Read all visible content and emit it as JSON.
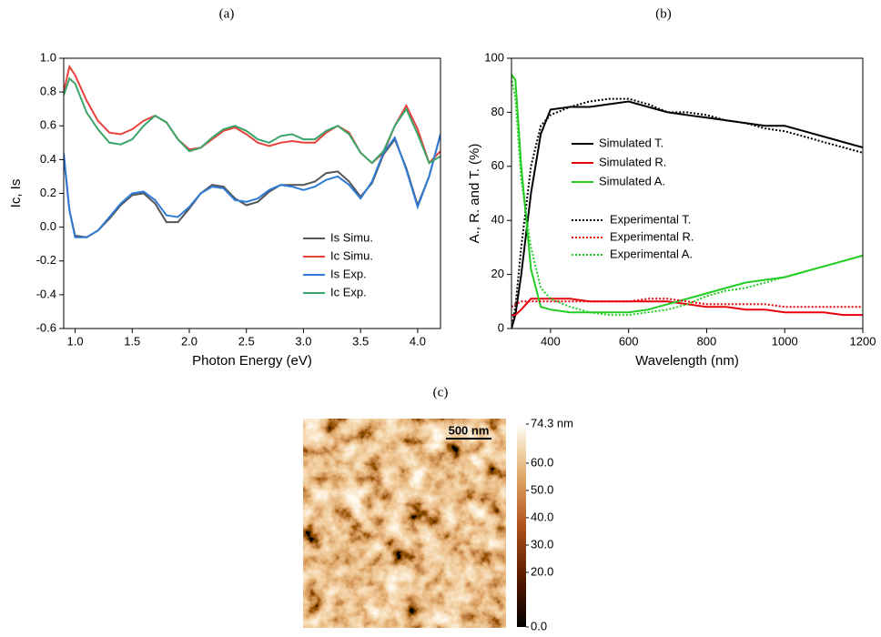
{
  "chart_data": [
    {
      "type": "line",
      "panel_label": "(a)",
      "x_label": "Photon Energy (eV)",
      "y_label": "Ic, Is",
      "xlim": [
        0.9,
        4.2
      ],
      "ylim": [
        -0.6,
        1.0
      ],
      "xticks": [
        {
          "value": 1,
          "label": "1.0"
        },
        1.5,
        {
          "value": 2,
          "label": "2.0"
        },
        2.5,
        {
          "value": 3,
          "label": "3.0"
        },
        3.5,
        {
          "value": 4,
          "label": "4.0"
        }
      ],
      "yticks": [
        -0.6,
        -0.4,
        -0.2,
        {
          "value": 0,
          "label": "0.0"
        },
        0.2,
        0.4,
        0.6,
        0.8,
        {
          "value": 1,
          "label": "1.0"
        }
      ],
      "legend": "lower right",
      "x": [
        0.9,
        0.95,
        1.0,
        1.1,
        1.2,
        1.3,
        1.4,
        1.5,
        1.6,
        1.7,
        1.8,
        1.9,
        2.0,
        2.1,
        2.2,
        2.3,
        2.4,
        2.5,
        2.6,
        2.7,
        2.8,
        2.9,
        3.0,
        3.1,
        3.2,
        3.3,
        3.4,
        3.5,
        3.6,
        3.7,
        3.8,
        3.9,
        4.0,
        4.1,
        4.2
      ],
      "series": [
        {
          "name": "Is Simu.",
          "color": "#555555",
          "dashed": false,
          "values": [
            0.42,
            0.1,
            -0.05,
            -0.06,
            -0.02,
            0.05,
            0.13,
            0.19,
            0.2,
            0.14,
            0.03,
            0.03,
            0.11,
            0.2,
            0.25,
            0.24,
            0.17,
            0.13,
            0.15,
            0.21,
            0.25,
            0.25,
            0.25,
            0.27,
            0.32,
            0.33,
            0.27,
            0.18,
            0.26,
            0.43,
            0.52,
            0.35,
            0.13,
            0.3,
            0.55
          ]
        },
        {
          "name": "Ic Simu.",
          "color": "#e8413c",
          "dashed": false,
          "values": [
            0.8,
            0.95,
            0.9,
            0.75,
            0.63,
            0.56,
            0.55,
            0.58,
            0.63,
            0.66,
            0.62,
            0.52,
            0.46,
            0.47,
            0.52,
            0.57,
            0.59,
            0.55,
            0.5,
            0.48,
            0.5,
            0.51,
            0.5,
            0.5,
            0.56,
            0.6,
            0.56,
            0.44,
            0.38,
            0.44,
            0.6,
            0.72,
            0.58,
            0.38,
            0.45
          ]
        },
        {
          "name": "Is Exp.",
          "color": "#2f7bd6",
          "dashed": false,
          "values": [
            0.44,
            0.1,
            -0.06,
            -0.06,
            -0.02,
            0.06,
            0.14,
            0.2,
            0.21,
            0.16,
            0.07,
            0.06,
            0.12,
            0.2,
            0.24,
            0.23,
            0.16,
            0.15,
            0.17,
            0.22,
            0.25,
            0.24,
            0.22,
            0.24,
            0.28,
            0.3,
            0.25,
            0.17,
            0.27,
            0.44,
            0.53,
            0.34,
            0.12,
            0.3,
            0.55
          ]
        },
        {
          "name": "Ic Exp.",
          "color": "#3aa56a",
          "dashed": false,
          "values": [
            0.78,
            0.88,
            0.85,
            0.68,
            0.58,
            0.5,
            0.49,
            0.52,
            0.6,
            0.66,
            0.62,
            0.52,
            0.45,
            0.47,
            0.53,
            0.58,
            0.6,
            0.57,
            0.52,
            0.5,
            0.54,
            0.55,
            0.52,
            0.52,
            0.57,
            0.6,
            0.55,
            0.44,
            0.38,
            0.45,
            0.6,
            0.7,
            0.55,
            0.38,
            0.42
          ]
        }
      ]
    },
    {
      "type": "line",
      "panel_label": "(b)",
      "x_label": "Wavelength (nm)",
      "y_label": "A., R. and T. (%)",
      "xlim": [
        300,
        1200
      ],
      "ylim": [
        0,
        100
      ],
      "xticks": [
        400,
        600,
        800,
        1000,
        1200
      ],
      "yticks": [
        0,
        20,
        40,
        60,
        80,
        100
      ],
      "legend": "center right",
      "x": [
        300,
        310,
        325,
        350,
        375,
        400,
        450,
        500,
        550,
        600,
        650,
        700,
        750,
        800,
        850,
        900,
        950,
        1000,
        1050,
        1100,
        1150,
        1200
      ],
      "series": [
        {
          "name": "Simulated T.",
          "color": "#000000",
          "dashed": false,
          "values": [
            0,
            5,
            20,
            50,
            72,
            81,
            82,
            82,
            83,
            84,
            82,
            80,
            79,
            78,
            77,
            76,
            75,
            75,
            73,
            71,
            69,
            67
          ]
        },
        {
          "name": "Simulated R.",
          "color": "#e8000b",
          "dashed": false,
          "values": [
            5,
            5,
            7,
            11,
            11,
            11,
            11,
            10,
            10,
            10,
            10,
            10,
            9,
            8,
            8,
            7,
            7,
            6,
            6,
            6,
            5,
            5
          ]
        },
        {
          "name": "Simulated A.",
          "color": "#22cc22",
          "dashed": false,
          "values": [
            94,
            92,
            60,
            22,
            8,
            7,
            6,
            6,
            6,
            6,
            7,
            9,
            11,
            13,
            15,
            17,
            18,
            19,
            21,
            23,
            25,
            27
          ]
        },
        {
          "name": "Experimental T.",
          "color": "#000000",
          "dashed": true,
          "values": [
            0,
            8,
            30,
            60,
            75,
            79,
            82,
            84,
            85,
            85,
            83,
            80,
            80,
            79,
            77,
            76,
            74,
            73,
            71,
            69,
            67,
            65
          ]
        },
        {
          "name": "Experimental R.",
          "color": "#e8000b",
          "dashed": true,
          "values": [
            8,
            9,
            10,
            10,
            10,
            10,
            10,
            10,
            10,
            10,
            11,
            11,
            10,
            9,
            9,
            9,
            9,
            8,
            8,
            8,
            8,
            8
          ]
        },
        {
          "name": "Experimental A.",
          "color": "#22cc22",
          "dashed": true,
          "values": [
            93,
            85,
            55,
            30,
            15,
            11,
            8,
            6,
            5,
            5,
            6,
            7,
            9,
            12,
            14,
            15,
            17,
            19,
            21,
            23,
            25,
            27
          ]
        }
      ]
    }
  ],
  "afm_image": {
    "panel_label": "(c)",
    "scale_bar": "500 nm",
    "colorbar": {
      "lim": [
        0,
        74.3
      ],
      "ticks": [
        {
          "value": 74.3,
          "label": "74.3 nm"
        },
        {
          "value": 60,
          "label": "60.0"
        },
        {
          "value": 50,
          "label": "50.0"
        },
        {
          "value": 40,
          "label": "40.0"
        },
        {
          "value": 30,
          "label": "30.0"
        },
        {
          "value": 20,
          "label": "20.0"
        },
        {
          "value": 0,
          "label": "0.0"
        }
      ]
    }
  }
}
